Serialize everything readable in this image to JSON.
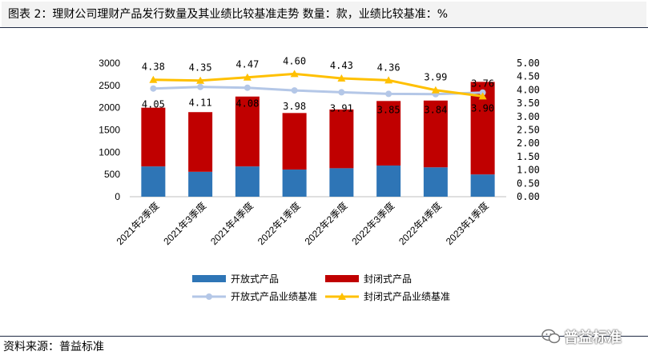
{
  "header": {
    "title": "图表 2：理财公司理财产品发行数量及其业绩比较基准走势    数量：款，业绩比较基准：%"
  },
  "footer": {
    "source": "资料来源：普益标准"
  },
  "watermark": {
    "text": "普益标准",
    "icon": "wechat-icon"
  },
  "colors": {
    "open": "#2e75b6",
    "closed": "#c00000",
    "open_line": "#b4c7e7",
    "closed_line": "#ffc000"
  },
  "chart_data": {
    "type": "bar",
    "categories": [
      "2021年2季度",
      "2021年3季度",
      "2021年4季度",
      "2022年1季度",
      "2022年2季度",
      "2022年3季度",
      "2022年4季度",
      "2023年1季度"
    ],
    "series": [
      {
        "name": "开放式产品",
        "type": "bar",
        "axis": "left",
        "stacked": true,
        "values": [
          680,
          560,
          680,
          610,
          640,
          700,
          660,
          500
        ]
      },
      {
        "name": "封闭式产品",
        "type": "bar",
        "axis": "left",
        "stacked": true,
        "values": [
          1320,
          1340,
          1570,
          1270,
          1320,
          1450,
          1500,
          2080
        ]
      },
      {
        "name": "开放式产品业绩基准",
        "type": "line",
        "axis": "right",
        "values": [
          4.05,
          4.11,
          4.08,
          3.98,
          3.91,
          3.85,
          3.84,
          3.9
        ],
        "labels": [
          "4.05",
          "4.11",
          "4.08",
          "3.98",
          "3.91",
          "3.85",
          "3.84",
          "3.90"
        ]
      },
      {
        "name": "封闭式产品业绩基准",
        "type": "line",
        "axis": "right",
        "values": [
          4.38,
          4.35,
          4.47,
          4.6,
          4.43,
          4.36,
          3.99,
          3.76
        ],
        "labels": [
          "4.38",
          "4.35",
          "4.47",
          "4.60",
          "4.43",
          "4.36",
          "3.99",
          "3.76"
        ]
      }
    ],
    "y_left": {
      "min": 0,
      "max": 3000,
      "ticks": [
        "0",
        "500",
        "1000",
        "1500",
        "2000",
        "2500",
        "3000"
      ]
    },
    "y_right": {
      "min": 0,
      "max": 5,
      "ticks": [
        "0.00",
        "0.50",
        "1.00",
        "1.50",
        "2.00",
        "2.50",
        "3.00",
        "3.50",
        "4.00",
        "4.50",
        "5.00"
      ]
    },
    "legend_position": "bottom",
    "grid": false
  }
}
